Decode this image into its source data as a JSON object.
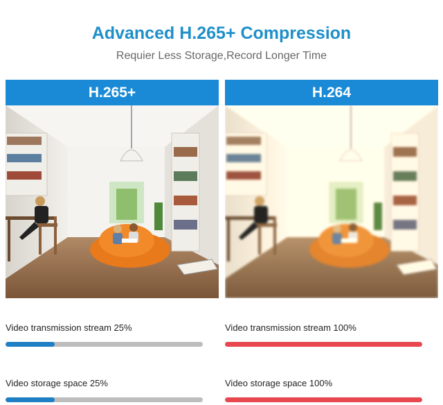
{
  "header": {
    "title": "Advanced H.265+ Compression",
    "subtitle": "Requier Less Storage,Record Longer Time"
  },
  "colors": {
    "title": "#1f8fc9",
    "panel_header": "#1a8ad6",
    "good_bar": "#1f7fc4",
    "bad_bar": "#e8474f",
    "track": "#bdbdbd"
  },
  "panels": [
    {
      "label": "H.265+",
      "image_quality": "sharp",
      "metrics": [
        {
          "label": "Video transmission stream 25%",
          "percent": 25
        },
        {
          "label": "Video storage space 25%",
          "percent": 25
        }
      ]
    },
    {
      "label": "H.264",
      "image_quality": "blurry",
      "metrics": [
        {
          "label": "Video transmission stream 100%",
          "percent": 100
        },
        {
          "label": "Video storage space 100%",
          "percent": 100
        }
      ]
    }
  ]
}
